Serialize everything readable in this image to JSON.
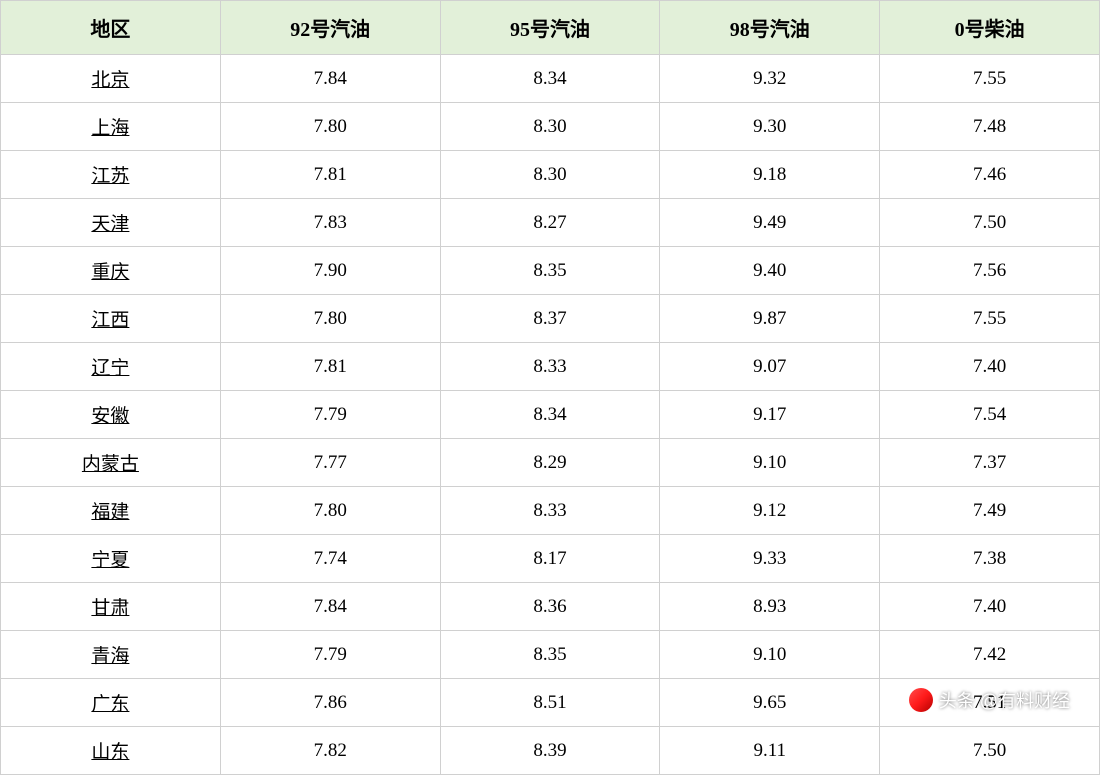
{
  "table": {
    "header_bg": "#e2f0d9",
    "border_color": "#d0d0d0",
    "text_color": "#000000",
    "header_fontsize": 20,
    "cell_fontsize": 19,
    "columns": [
      "地区",
      "92号汽油",
      "95号汽油",
      "98号汽油",
      "0号柴油"
    ],
    "rows": [
      [
        "北京",
        "7.84",
        "8.34",
        "9.32",
        "7.55"
      ],
      [
        "上海",
        "7.80",
        "8.30",
        "9.30",
        "7.48"
      ],
      [
        "江苏",
        "7.81",
        "8.30",
        "9.18",
        "7.46"
      ],
      [
        "天津",
        "7.83",
        "8.27",
        "9.49",
        "7.50"
      ],
      [
        "重庆",
        "7.90",
        "8.35",
        "9.40",
        "7.56"
      ],
      [
        "江西",
        "7.80",
        "8.37",
        "9.87",
        "7.55"
      ],
      [
        "辽宁",
        "7.81",
        "8.33",
        "9.07",
        "7.40"
      ],
      [
        "安徽",
        "7.79",
        "8.34",
        "9.17",
        "7.54"
      ],
      [
        "内蒙古",
        "7.77",
        "8.29",
        "9.10",
        "7.37"
      ],
      [
        "福建",
        "7.80",
        "8.33",
        "9.12",
        "7.49"
      ],
      [
        "宁夏",
        "7.74",
        "8.17",
        "9.33",
        "7.38"
      ],
      [
        "甘肃",
        "7.84",
        "8.36",
        "8.93",
        "7.40"
      ],
      [
        "青海",
        "7.79",
        "8.35",
        "9.10",
        "7.42"
      ],
      [
        "广东",
        "7.86",
        "8.51",
        "9.65",
        "7.51"
      ],
      [
        "山东",
        "7.82",
        "8.39",
        "9.11",
        "7.50"
      ]
    ]
  },
  "watermark": {
    "text": "头条 @有料财经"
  }
}
